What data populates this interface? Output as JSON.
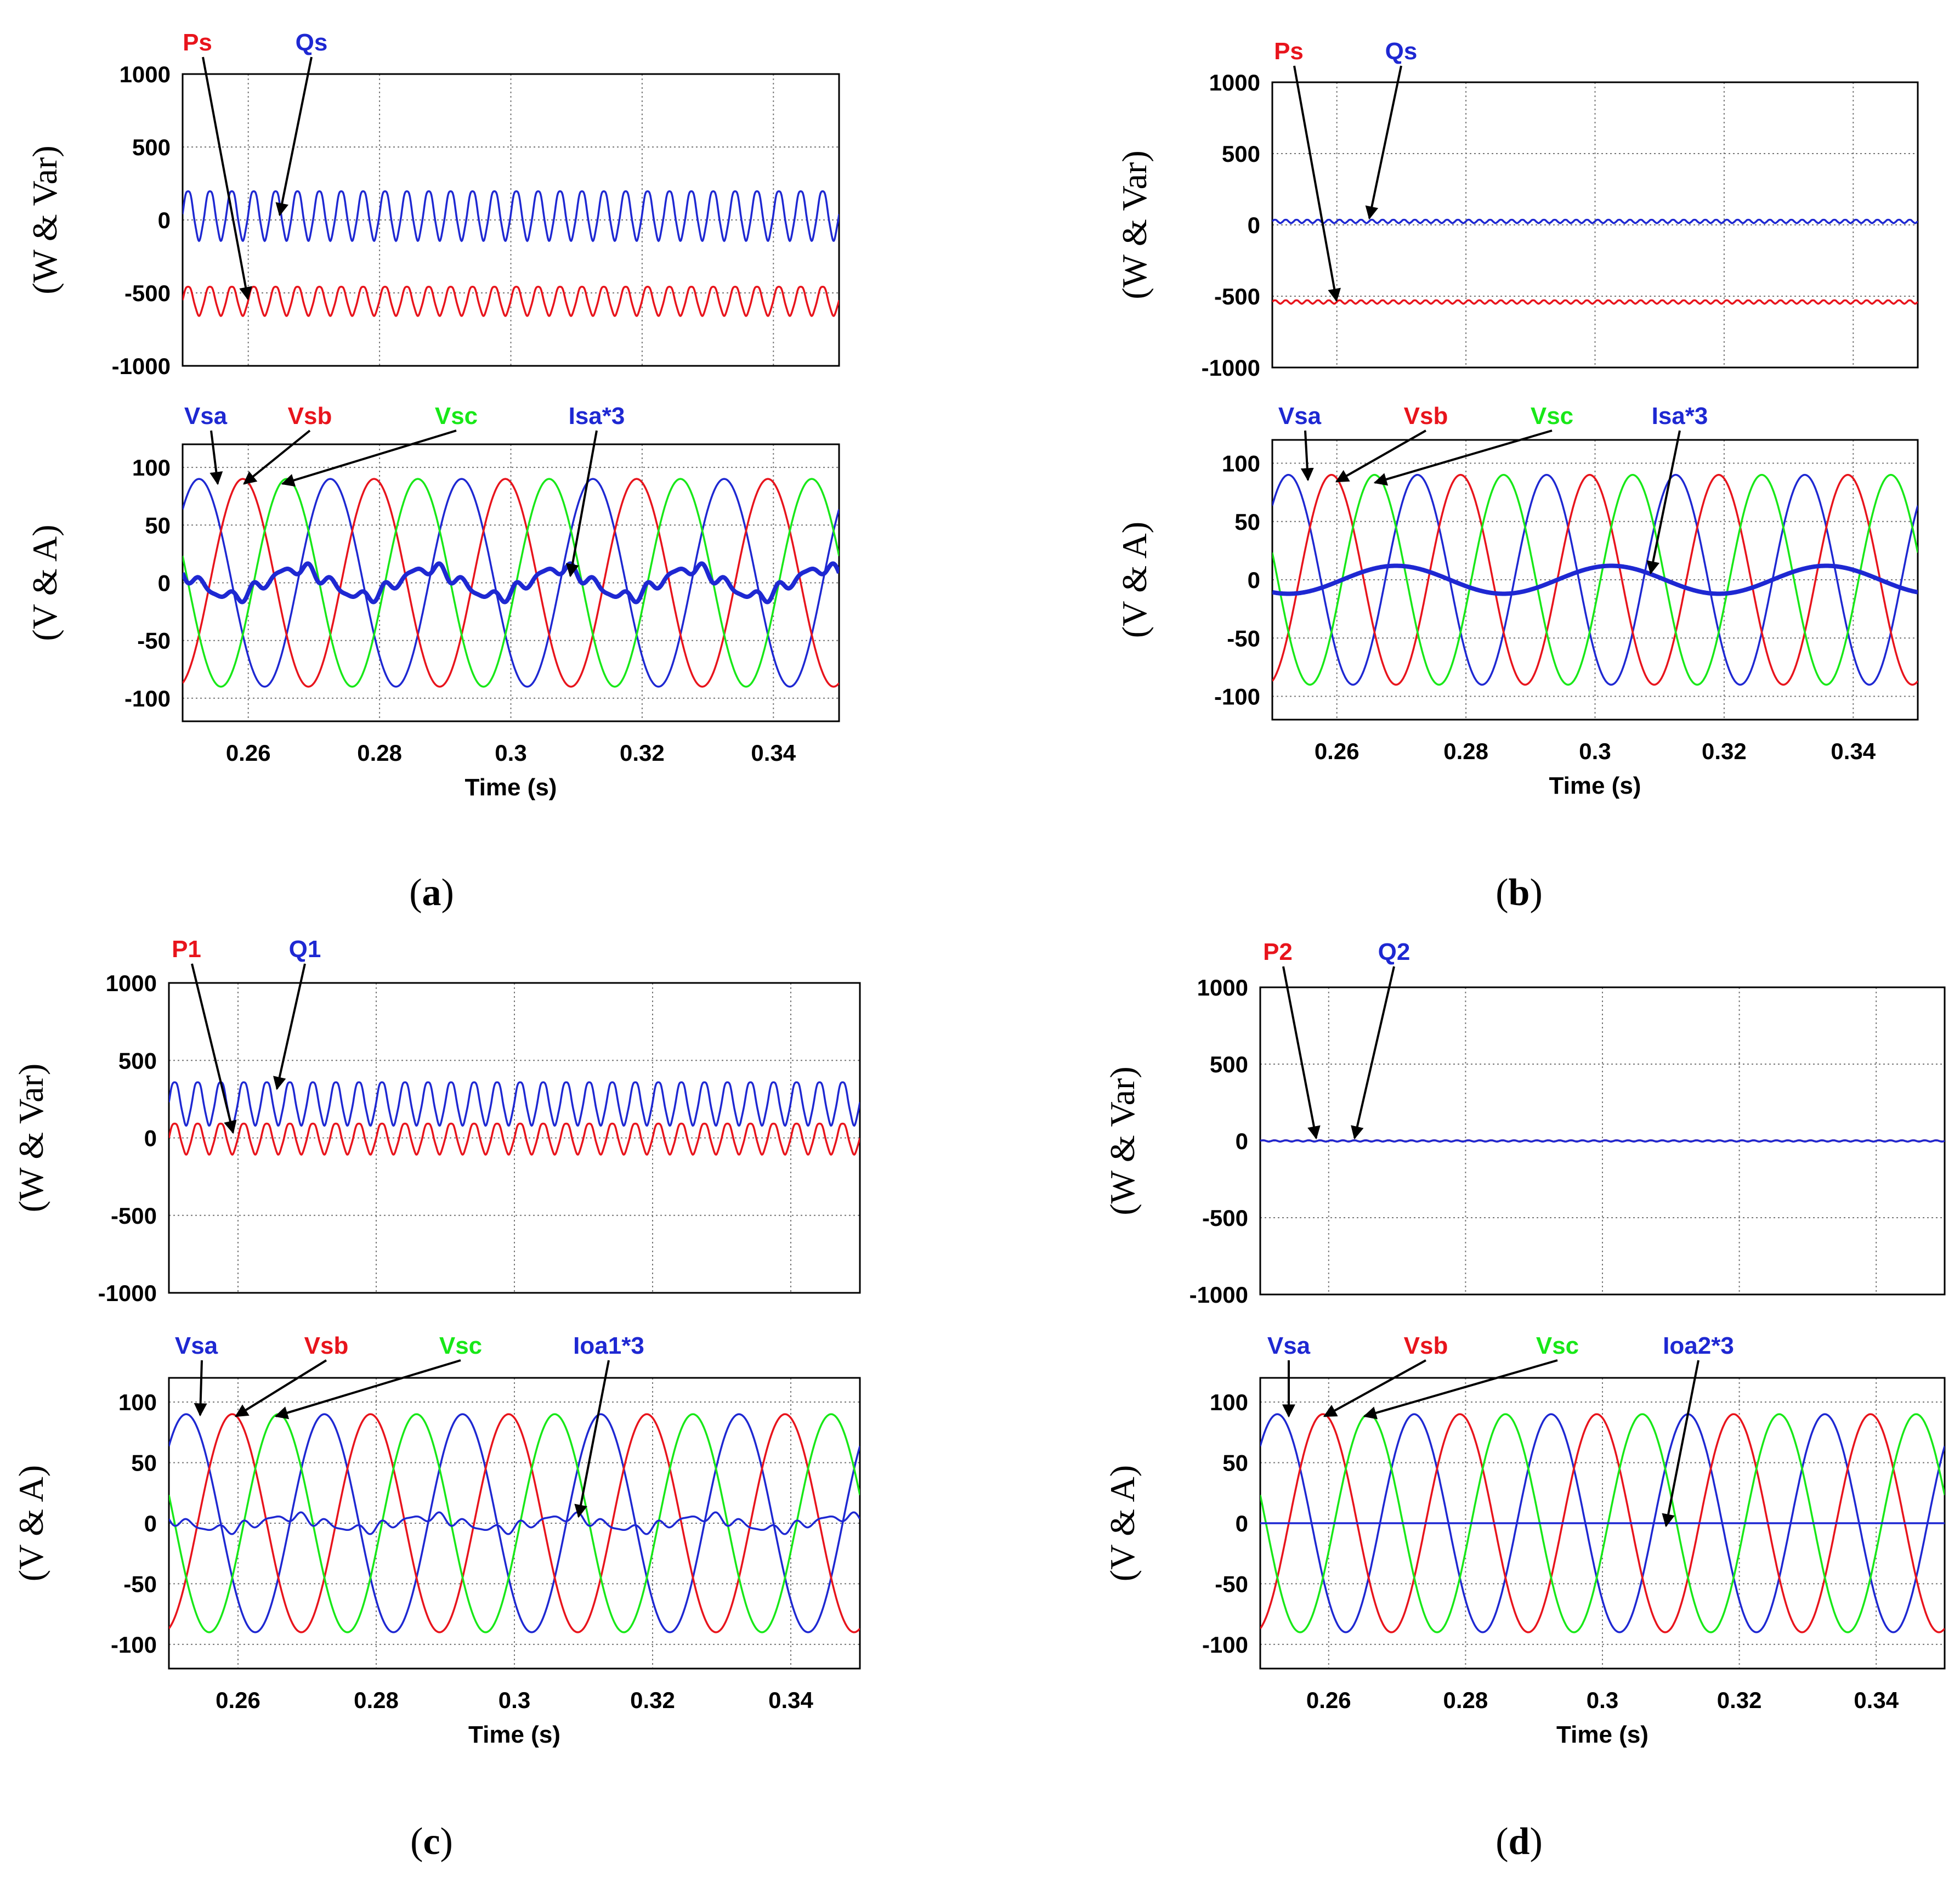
{
  "colors": {
    "red": "#e8141c",
    "blue": "#1e28d2",
    "green": "#18e818",
    "black": "#000000"
  },
  "chart_data": [
    {
      "panel": "a",
      "caption": "a",
      "power_plot": {
        "type": "line",
        "ylabel": "(W & Var)",
        "ylim": [
          -1000,
          1000
        ],
        "yticks": [
          "1000",
          "500",
          "0",
          "-500",
          "-1000"
        ],
        "xlim": [
          0.25,
          0.35
        ],
        "series": [
          {
            "name": "Ps",
            "label": "Ps",
            "color": "red",
            "mean": -550,
            "ripple": 100,
            "ripple_hz": 300
          },
          {
            "name": "Qs",
            "label": "Qs",
            "color": "blue",
            "mean": 40,
            "ripple": 170,
            "ripple_hz": 300
          }
        ]
      },
      "wave_plot": {
        "type": "line",
        "ylabel": "(V & A)",
        "ylim": [
          -120,
          120
        ],
        "yticks": [
          "100",
          "50",
          "0",
          "-50",
          "-100"
        ],
        "xlim": [
          0.25,
          0.35
        ],
        "xticks": [
          "0.26",
          "0.28",
          "0.3",
          "0.32",
          "0.34"
        ],
        "xlabel": "Time (s)",
        "series": [
          {
            "name": "Vsa",
            "label": "Vsa",
            "color": "blue",
            "amplitude": 90,
            "freq_hz": 50,
            "phase_deg": 0
          },
          {
            "name": "Vsb",
            "label": "Vsb",
            "color": "red",
            "amplitude": 90,
            "freq_hz": 50,
            "phase_deg": -120
          },
          {
            "name": "Vsc",
            "label": "Vsc",
            "color": "green",
            "amplitude": 90,
            "freq_hz": 50,
            "phase_deg": 120
          },
          {
            "name": "Isa*3",
            "label": "Isa*3",
            "color": "blue",
            "amplitude": 12,
            "freq_hz": 50,
            "phase_deg": 90,
            "distortion": 4,
            "bold": true
          }
        ]
      }
    },
    {
      "panel": "b",
      "caption": "b",
      "power_plot": {
        "type": "line",
        "ylabel": "(W & Var)",
        "ylim": [
          -1000,
          1000
        ],
        "yticks": [
          "1000",
          "500",
          "0",
          "-500",
          "-1000"
        ],
        "xlim": [
          0.25,
          0.35
        ],
        "series": [
          {
            "name": "Ps",
            "label": "Ps",
            "color": "red",
            "mean": -540,
            "ripple": 12,
            "ripple_hz": 600
          },
          {
            "name": "Qs",
            "label": "Qs",
            "color": "blue",
            "mean": 25,
            "ripple": 12,
            "ripple_hz": 600
          }
        ]
      },
      "wave_plot": {
        "type": "line",
        "ylabel": "(V & A)",
        "ylim": [
          -120,
          120
        ],
        "yticks": [
          "100",
          "50",
          "0",
          "-50",
          "-100"
        ],
        "xlim": [
          0.25,
          0.35
        ],
        "xticks": [
          "0.26",
          "0.28",
          "0.3",
          "0.32",
          "0.34"
        ],
        "xlabel": "Time (s)",
        "series": [
          {
            "name": "Vsa",
            "label": "Vsa",
            "color": "blue",
            "amplitude": 90,
            "freq_hz": 50,
            "phase_deg": 0
          },
          {
            "name": "Vsb",
            "label": "Vsb",
            "color": "red",
            "amplitude": 90,
            "freq_hz": 50,
            "phase_deg": -120
          },
          {
            "name": "Vsc",
            "label": "Vsc",
            "color": "green",
            "amplitude": 90,
            "freq_hz": 50,
            "phase_deg": 120
          },
          {
            "name": "Isa*3",
            "label": "Isa*3",
            "color": "blue",
            "amplitude": 12,
            "freq_hz": 30,
            "phase_deg": 180,
            "distortion": 0,
            "bold": true
          }
        ]
      }
    },
    {
      "panel": "c",
      "caption": "c",
      "power_plot": {
        "type": "line",
        "ylabel": "(W & Var)",
        "ylim": [
          -1000,
          1000
        ],
        "yticks": [
          "1000",
          "500",
          "0",
          "-500",
          "-1000"
        ],
        "xlim": [
          0.25,
          0.35
        ],
        "series": [
          {
            "name": "P1",
            "label": "P1",
            "color": "red",
            "mean": 0,
            "ripple": 100,
            "ripple_hz": 300
          },
          {
            "name": "Q1",
            "label": "Q1",
            "color": "blue",
            "mean": 230,
            "ripple": 140,
            "ripple_hz": 300
          }
        ]
      },
      "wave_plot": {
        "type": "line",
        "ylabel": "(V & A)",
        "ylim": [
          -120,
          120
        ],
        "yticks": [
          "100",
          "50",
          "0",
          "-50",
          "-100"
        ],
        "xlim": [
          0.25,
          0.35
        ],
        "xticks": [
          "0.26",
          "0.28",
          "0.3",
          "0.32",
          "0.34"
        ],
        "xlabel": "Time (s)",
        "series": [
          {
            "name": "Vsa",
            "label": "Vsa",
            "color": "blue",
            "amplitude": 90,
            "freq_hz": 50,
            "phase_deg": 0
          },
          {
            "name": "Vsb",
            "label": "Vsb",
            "color": "red",
            "amplitude": 90,
            "freq_hz": 50,
            "phase_deg": -120
          },
          {
            "name": "Vsc",
            "label": "Vsc",
            "color": "green",
            "amplitude": 90,
            "freq_hz": 50,
            "phase_deg": 120
          },
          {
            "name": "Ioa1*3",
            "label": "Ioa1*3",
            "color": "blue",
            "amplitude": 5,
            "freq_hz": 50,
            "phase_deg": 90,
            "distortion": 3,
            "bold": false
          }
        ]
      }
    },
    {
      "panel": "d",
      "caption": "d",
      "power_plot": {
        "type": "line",
        "ylabel": "(W & Var)",
        "ylim": [
          -1000,
          1000
        ],
        "yticks": [
          "1000",
          "500",
          "0",
          "-500",
          "-1000"
        ],
        "xlim": [
          0.25,
          0.35
        ],
        "series": [
          {
            "name": "P2",
            "label": "P2",
            "color": "red",
            "mean": 0,
            "ripple": 4,
            "ripple_hz": 600
          },
          {
            "name": "Q2",
            "label": "Q2",
            "color": "blue",
            "mean": 0,
            "ripple": 4,
            "ripple_hz": 600
          }
        ]
      },
      "wave_plot": {
        "type": "line",
        "ylabel": "(V & A)",
        "ylim": [
          -120,
          120
        ],
        "yticks": [
          "100",
          "50",
          "0",
          "-50",
          "-100"
        ],
        "xlim": [
          0.25,
          0.35
        ],
        "xticks": [
          "0.26",
          "0.28",
          "0.3",
          "0.32",
          "0.34"
        ],
        "xlabel": "Time (s)",
        "series": [
          {
            "name": "Vsa",
            "label": "Vsa",
            "color": "blue",
            "amplitude": 90,
            "freq_hz": 50,
            "phase_deg": 0
          },
          {
            "name": "Vsb",
            "label": "Vsb",
            "color": "red",
            "amplitude": 90,
            "freq_hz": 50,
            "phase_deg": -120
          },
          {
            "name": "Vsc",
            "label": "Vsc",
            "color": "green",
            "amplitude": 90,
            "freq_hz": 50,
            "phase_deg": 120
          },
          {
            "name": "Ioa2*3",
            "label": "Ioa2*3",
            "color": "blue",
            "amplitude": 0,
            "freq_hz": 50,
            "phase_deg": 0,
            "distortion": 0,
            "bold": false
          }
        ]
      }
    }
  ]
}
